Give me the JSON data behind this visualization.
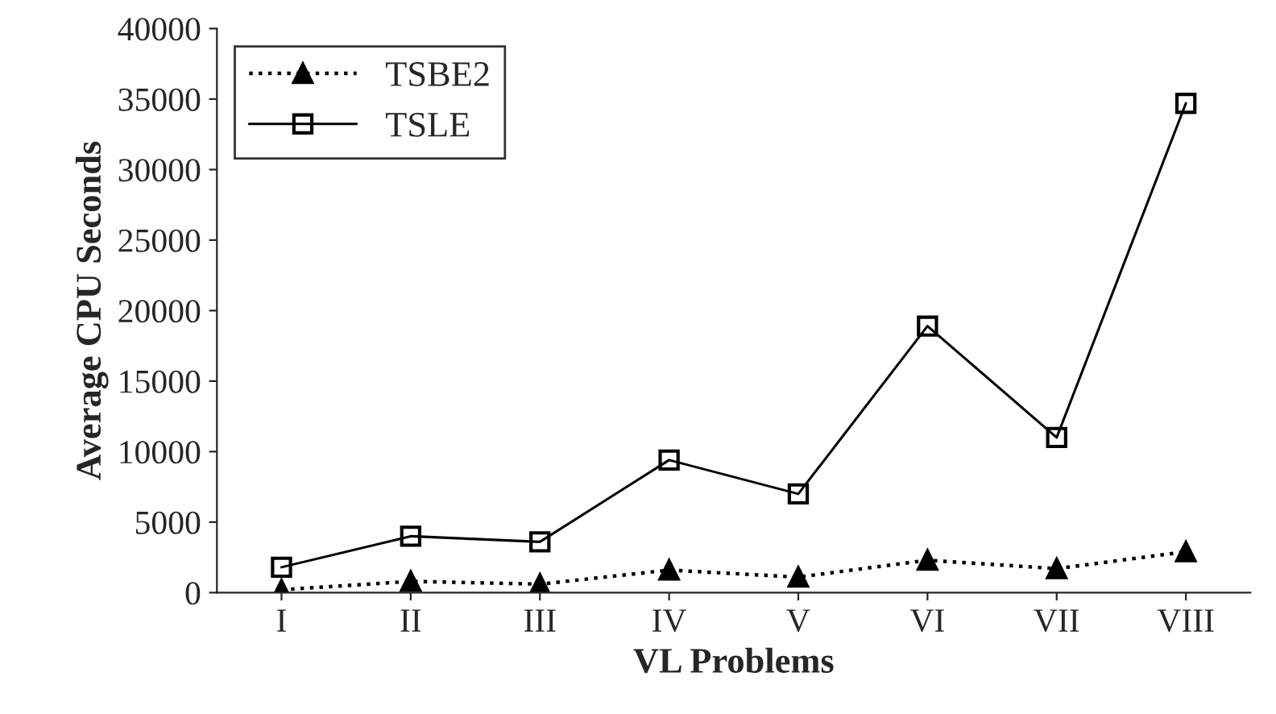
{
  "chart_data": {
    "type": "line",
    "xlabel": "VL Problems",
    "ylabel": "Average CPU Seconds",
    "categories": [
      "I",
      "II",
      "III",
      "IV",
      "V",
      "VI",
      "VII",
      "VIII"
    ],
    "series": [
      {
        "name": "TSBE2",
        "color": "#000000",
        "marker": "triangle",
        "line_style": "dotted",
        "values": [
          200,
          800,
          600,
          1600,
          1100,
          2300,
          1700,
          2900
        ]
      },
      {
        "name": "TSLE",
        "color": "#000000",
        "marker": "square",
        "line_style": "solid",
        "values": [
          1800,
          4000,
          3600,
          9400,
          7000,
          18900,
          11000,
          34700
        ]
      }
    ],
    "ylim": [
      0,
      40000
    ],
    "yticks": [
      0,
      5000,
      10000,
      15000,
      20000,
      25000,
      30000,
      35000,
      40000
    ],
    "grid": false,
    "legend": "top left"
  }
}
